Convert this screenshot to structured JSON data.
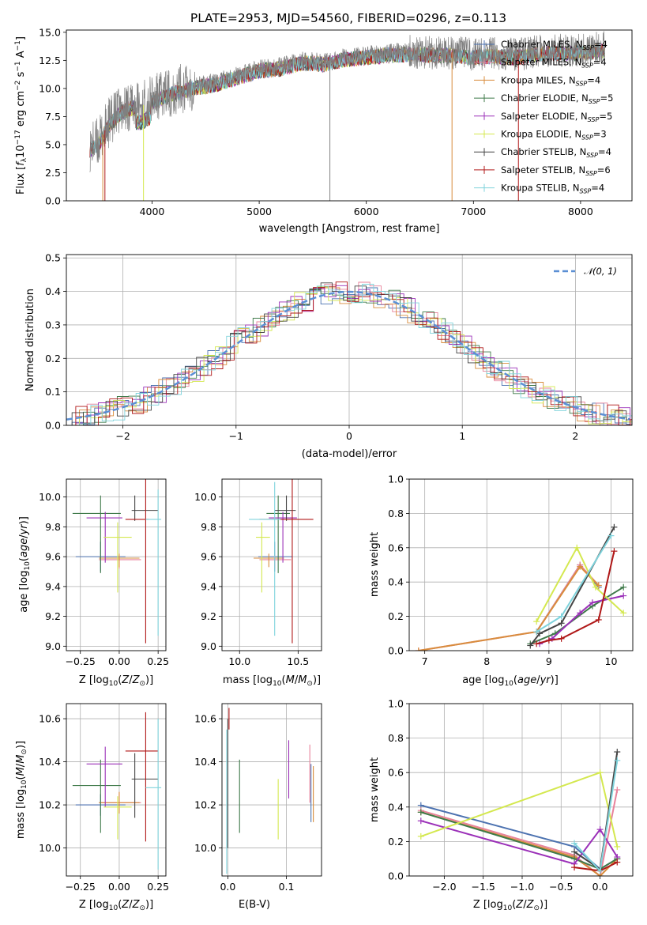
{
  "chart_data": [
    {
      "type": "line",
      "panel": "spectrum",
      "title": "PLATE=2953, MJD=54560, FIBERID=0296, z=0.113",
      "xlabel": "wavelength [Angstrom, rest frame]",
      "ylabel": "Flux [fλ10⁻¹⁷ erg cm⁻² s⁻¹ A⁻¹]",
      "xlim": [
        3200,
        8480
      ],
      "ylim": [
        0,
        15.2
      ],
      "xticks": [
        4000,
        5000,
        6000,
        7000,
        8000
      ],
      "yticks": [
        0.0,
        2.5,
        5.0,
        7.5,
        10.0,
        12.5,
        15.0
      ],
      "grid": false,
      "legend_position": "right",
      "legend": [
        {
          "label": "Chabrier MILES, N_SSP=4",
          "color": "#4c72b0"
        },
        {
          "label": "Salpeter MILES, N_SSP=4",
          "color": "#e8839b"
        },
        {
          "label": "Kroupa MILES, N_SSP=4",
          "color": "#d88c3c"
        },
        {
          "label": "Chabrier ELODIE, N_SSP=5",
          "color": "#3f7a4a"
        },
        {
          "label": "Salpeter ELODIE, N_SSP=5",
          "color": "#9b30b8"
        },
        {
          "label": "Kroupa ELODIE, N_SSP=3",
          "color": "#d4e84f"
        },
        {
          "label": "Chabrier STELIB, N_SSP=4",
          "color": "#444444"
        },
        {
          "label": "Salpeter STELIB, N_SSP=6",
          "color": "#b01818"
        },
        {
          "label": "Kroupa STELIB, N_SSP=4",
          "color": "#7fd3dc"
        }
      ],
      "data_color": "#808080",
      "series": [
        {
          "name": "data",
          "x": [
            3420,
            3500,
            3600,
            3700,
            3800,
            3900,
            4000,
            4200,
            4400,
            4600,
            4800,
            5000,
            5200,
            5400,
            5600,
            5800,
            6000,
            6200,
            6400,
            6600,
            6800,
            7000,
            7200,
            7400,
            7600,
            7800,
            8000,
            8200
          ],
          "y": [
            4.8,
            5.2,
            7.0,
            8.0,
            8.5,
            8.4,
            9.0,
            9.8,
            10.3,
            10.6,
            11.2,
            11.8,
            12.0,
            12.5,
            12.4,
            12.8,
            13.0,
            13.2,
            13.3,
            13.2,
            13.2,
            13.0,
            13.1,
            13.0,
            13.3,
            13.4,
            13.4,
            13.6
          ]
        }
      ]
    },
    {
      "type": "line",
      "panel": "residuals",
      "xlabel": "(data-model)/error",
      "ylabel": "Normed distribution",
      "xlim": [
        -2.5,
        2.5
      ],
      "ylim": [
        0,
        0.51
      ],
      "xticks": [
        -2,
        -1,
        0,
        1,
        2
      ],
      "yticks": [
        0.0,
        0.1,
        0.2,
        0.3,
        0.4,
        0.5
      ],
      "grid": true,
      "legend_position": "top-right",
      "legend": [
        {
          "label": "𝒩(0, 1)",
          "color": "#5b8fd4"
        }
      ],
      "bins_center": [
        -2.4,
        -2.2,
        -2.0,
        -1.8,
        -1.6,
        -1.4,
        -1.2,
        -1.0,
        -0.8,
        -0.6,
        -0.4,
        -0.2,
        0.0,
        0.2,
        0.4,
        0.6,
        0.8,
        1.0,
        1.2,
        1.4,
        1.6,
        1.8,
        2.0,
        2.2,
        2.4
      ],
      "series": [
        {
          "name": "hist",
          "values": [
            0.022,
            0.04,
            0.075,
            0.09,
            0.13,
            0.17,
            0.21,
            0.26,
            0.3,
            0.34,
            0.37,
            0.39,
            0.4,
            0.39,
            0.37,
            0.34,
            0.3,
            0.26,
            0.21,
            0.17,
            0.12,
            0.085,
            0.055,
            0.04,
            0.025
          ]
        }
      ]
    },
    {
      "type": "scatter",
      "panel": "age-vs-Z",
      "xlabel": "Z [log₁₀(Z/Z⊙)]",
      "ylabel": "age  [log₁₀(age/yr)]",
      "xlim": [
        -0.34,
        0.3
      ],
      "ylim": [
        8.97,
        10.12
      ],
      "xticks": [
        -0.25,
        0.0,
        0.25
      ],
      "xtick_labels": [
        "−0.25",
        "0.00",
        "0.25"
      ],
      "yticks": [
        9.0,
        9.2,
        9.4,
        9.6,
        9.8,
        10.0
      ],
      "grid": true
    },
    {
      "type": "scatter",
      "panel": "age-vs-mass",
      "xlabel": "mass [log₁₀(M/M⊙)]",
      "xlim": [
        9.85,
        10.7
      ],
      "ylim": [
        8.97,
        10.12
      ],
      "xticks": [
        10.0,
        10.5
      ],
      "yticks": [
        9.0,
        9.2,
        9.4,
        9.6,
        9.8,
        10.0
      ],
      "grid": true
    },
    {
      "type": "line",
      "panel": "massweight-vs-age",
      "xlabel": "age  [log₁₀(age/yr)]",
      "ylabel": "mass weight",
      "xlim": [
        6.75,
        10.35
      ],
      "ylim": [
        0,
        1.0
      ],
      "xticks": [
        7,
        8,
        9,
        10
      ],
      "yticks": [
        0.0,
        0.2,
        0.4,
        0.6,
        0.8,
        1.0
      ],
      "grid": true,
      "series": [
        {
          "name": "",
          "x": [
            8.8,
            9.5,
            9.8
          ],
          "y": [
            0.11,
            0.5,
            0.37
          ],
          "color": "#4c72b0"
        },
        {
          "name": "",
          "x": [
            6.9,
            8.8,
            9.5,
            9.8
          ],
          "y": [
            0.0,
            0.11,
            0.5,
            0.38
          ],
          "color": "#e8839b"
        },
        {
          "name": "",
          "x": [
            6.9,
            8.8,
            9.5,
            9.8
          ],
          "y": [
            0.0,
            0.11,
            0.49,
            0.38
          ],
          "color": "#d88c3c"
        },
        {
          "name": "",
          "x": [
            8.7,
            9.1,
            9.7,
            10.2
          ],
          "y": [
            0.04,
            0.1,
            0.26,
            0.37
          ],
          "color": "#3f7a4a"
        },
        {
          "name": "",
          "x": [
            8.85,
            9.05,
            9.5,
            9.7,
            10.2
          ],
          "y": [
            0.04,
            0.07,
            0.22,
            0.28,
            0.32
          ],
          "color": "#9b30b8"
        },
        {
          "name": "",
          "x": [
            8.8,
            9.45,
            9.75,
            10.2
          ],
          "y": [
            0.17,
            0.6,
            0.37,
            0.22
          ],
          "color": "#d4e84f"
        },
        {
          "name": "",
          "x": [
            8.7,
            8.85,
            9.2,
            10.05
          ],
          "y": [
            0.03,
            0.1,
            0.16,
            0.72
          ],
          "color": "#444444"
        },
        {
          "name": "",
          "x": [
            8.8,
            9.0,
            9.2,
            9.8,
            10.05
          ],
          "y": [
            0.04,
            0.06,
            0.07,
            0.18,
            0.58
          ],
          "color": "#b01818"
        },
        {
          "name": "",
          "x": [
            8.8,
            9.2,
            10.0
          ],
          "y": [
            0.11,
            0.2,
            0.67
          ],
          "color": "#7fd3dc"
        }
      ]
    },
    {
      "type": "scatter",
      "panel": "mass-vs-Z",
      "xlabel": "Z [log₁₀(Z/Z⊙)]",
      "ylabel": "mass [log₁₀(M/M⊙)]",
      "xlim": [
        -0.34,
        0.3
      ],
      "ylim": [
        9.87,
        10.67
      ],
      "xticks": [
        -0.25,
        0.0,
        0.25
      ],
      "xtick_labels": [
        "−0.25",
        "0.00",
        "0.25"
      ],
      "yticks": [
        10.0,
        10.2,
        10.4,
        10.6
      ],
      "grid": true
    },
    {
      "type": "scatter",
      "panel": "mass-vs-EBV",
      "xlabel": "E(B-V)",
      "xlim": [
        -0.01,
        0.16
      ],
      "ylim": [
        9.87,
        10.67
      ],
      "xticks": [
        0.0,
        0.1
      ],
      "yticks": [
        10.0,
        10.2,
        10.4,
        10.6
      ],
      "grid": true
    },
    {
      "type": "line",
      "panel": "massweight-vs-Z",
      "xlabel": "Z [log₁₀(Z/Z⊙)]",
      "ylabel": "mass weight",
      "xlim": [
        -2.45,
        0.42
      ],
      "ylim": [
        0,
        1.0
      ],
      "xticks": [
        -2.0,
        -1.5,
        -1.0,
        -0.5,
        0.0
      ],
      "xtick_labels": [
        "−2.0",
        "−1.5",
        "−1.0",
        "−0.5",
        "0.0"
      ],
      "yticks": [
        0.0,
        0.2,
        0.4,
        0.6,
        0.8,
        1.0
      ],
      "grid": true,
      "series": [
        {
          "name": "",
          "x": [
            -2.3,
            -0.33,
            0.0,
            0.22
          ],
          "y": [
            0.41,
            0.17,
            0.04,
            0.1
          ],
          "color": "#4c72b0"
        },
        {
          "name": "",
          "x": [
            -2.3,
            -0.33,
            0.0,
            0.22
          ],
          "y": [
            0.38,
            0.12,
            0.0,
            0.5
          ],
          "color": "#e8839b"
        },
        {
          "name": "",
          "x": [
            -2.3,
            -0.33,
            0.0,
            0.22
          ],
          "y": [
            0.37,
            0.11,
            0.0,
            0.1
          ],
          "color": "#d88c3c"
        },
        {
          "name": "",
          "x": [
            -2.3,
            -0.33,
            0.0,
            0.22
          ],
          "y": [
            0.37,
            0.1,
            0.04,
            0.1
          ],
          "color": "#3f7a4a"
        },
        {
          "name": "",
          "x": [
            -2.3,
            -0.33,
            0.0,
            0.22
          ],
          "y": [
            0.32,
            0.07,
            0.27,
            0.11
          ],
          "color": "#9b30b8"
        },
        {
          "name": "",
          "x": [
            -2.3,
            0.0,
            0.22
          ],
          "y": [
            0.23,
            0.6,
            0.17
          ],
          "color": "#d4e84f"
        },
        {
          "name": "",
          "x": [
            -0.33,
            0.0,
            0.22
          ],
          "y": [
            0.14,
            0.04,
            0.72
          ],
          "color": "#444444"
        },
        {
          "name": "",
          "x": [
            -0.33,
            0.0,
            0.22
          ],
          "y": [
            0.05,
            0.03,
            0.08
          ],
          "color": "#b01818"
        },
        {
          "name": "",
          "x": [
            -0.33,
            0.0,
            0.22
          ],
          "y": [
            0.19,
            0.03,
            0.67
          ],
          "color": "#7fd3dc"
        }
      ]
    }
  ]
}
